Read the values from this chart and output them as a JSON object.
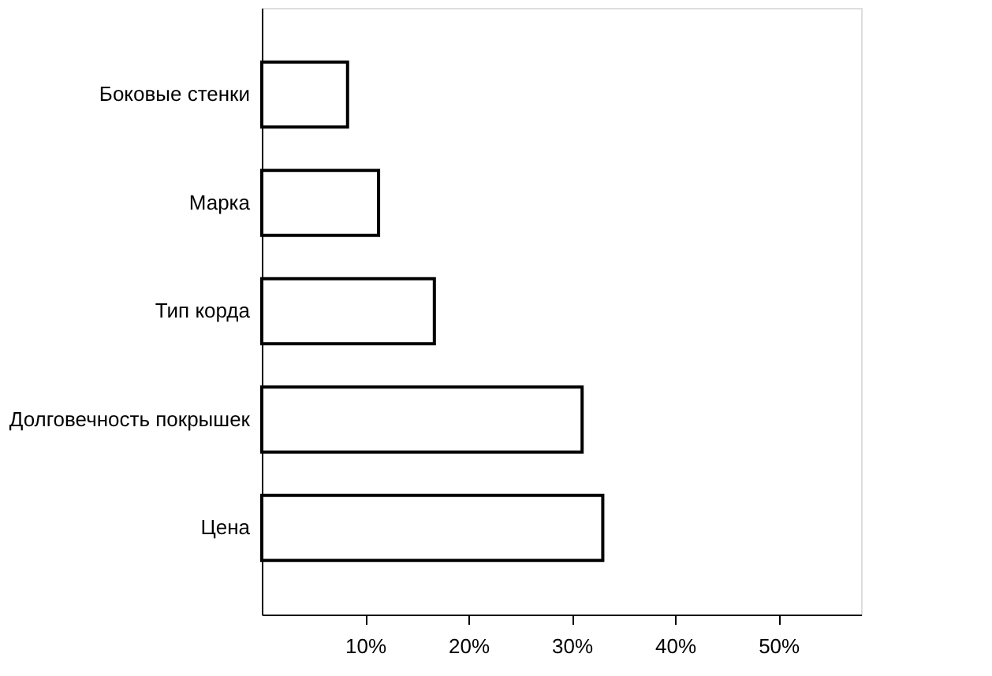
{
  "chart_data": {
    "type": "bar",
    "orientation": "horizontal",
    "categories": [
      "Боковые стенки",
      "Марка",
      "Тип корда",
      "Долговечность покрышек",
      "Цена"
    ],
    "values": [
      8.3,
      11.3,
      16.7,
      31,
      33
    ],
    "color": "#ffffff",
    "xlim": [
      0,
      58
    ],
    "xticks": [
      {
        "value": 10,
        "label": "10%"
      },
      {
        "value": 20,
        "label": "20%"
      },
      {
        "value": 30,
        "label": "30%"
      },
      {
        "value": 40,
        "label": "40%"
      },
      {
        "value": 50,
        "label": "50%"
      }
    ],
    "grid": false
  }
}
